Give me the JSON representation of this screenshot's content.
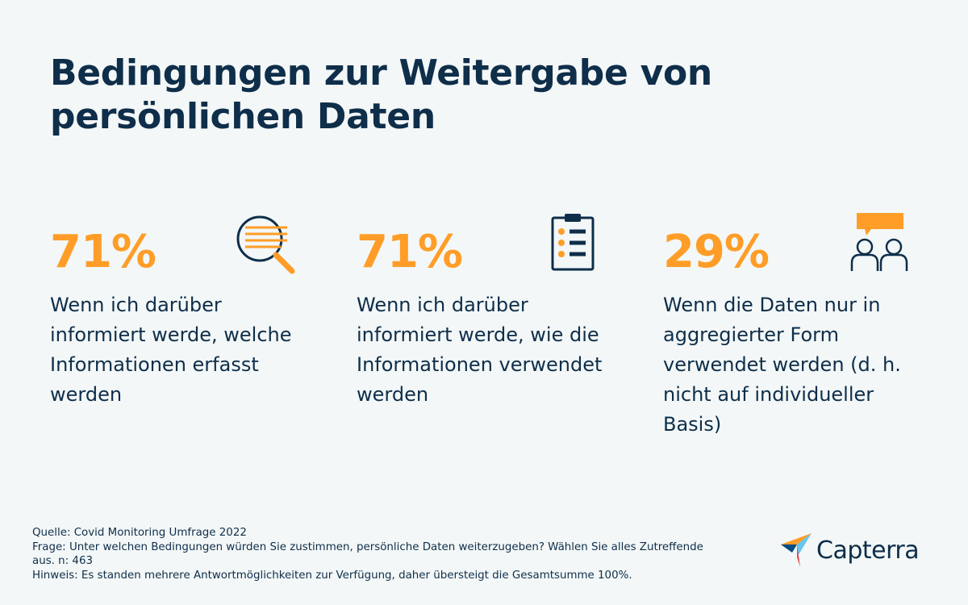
{
  "title": "Bedingungen zur Weitergabe von persönlichen Daten",
  "colors": {
    "accent": "#ff9d28",
    "text": "#0e2e4a",
    "background": "#f3f7f7"
  },
  "stats": [
    {
      "value": "71%",
      "text": "Wenn ich darüber informiert werde, welche Informationen erfasst werden",
      "icon": "magnifier-document-icon"
    },
    {
      "value": "71%",
      "text": "Wenn ich darüber informiert werde, wie die Informationen verwendet werden",
      "icon": "clipboard-checklist-icon"
    },
    {
      "value": "29%",
      "text": "Wenn die Daten nur in aggregierter Form verwendet werden (d. h. nicht auf individueller Basis)",
      "icon": "people-speech-bubble-icon"
    }
  ],
  "footer": {
    "source": "Quelle: Covid Monitoring Umfrage 2022",
    "question": "Frage: Unter welchen Bedingungen würden Sie zustimmen, persönliche Daten weiterzugeben? Wählen Sie alles Zutreffende aus. n: 463",
    "note": "Hinweis: Es standen mehrere Antwortmöglichkeiten zur Verfügung, daher übersteigt die Gesamtsumme 100%."
  },
  "logo": {
    "text": "Capterra",
    "icon": "capterra-logo-icon"
  }
}
